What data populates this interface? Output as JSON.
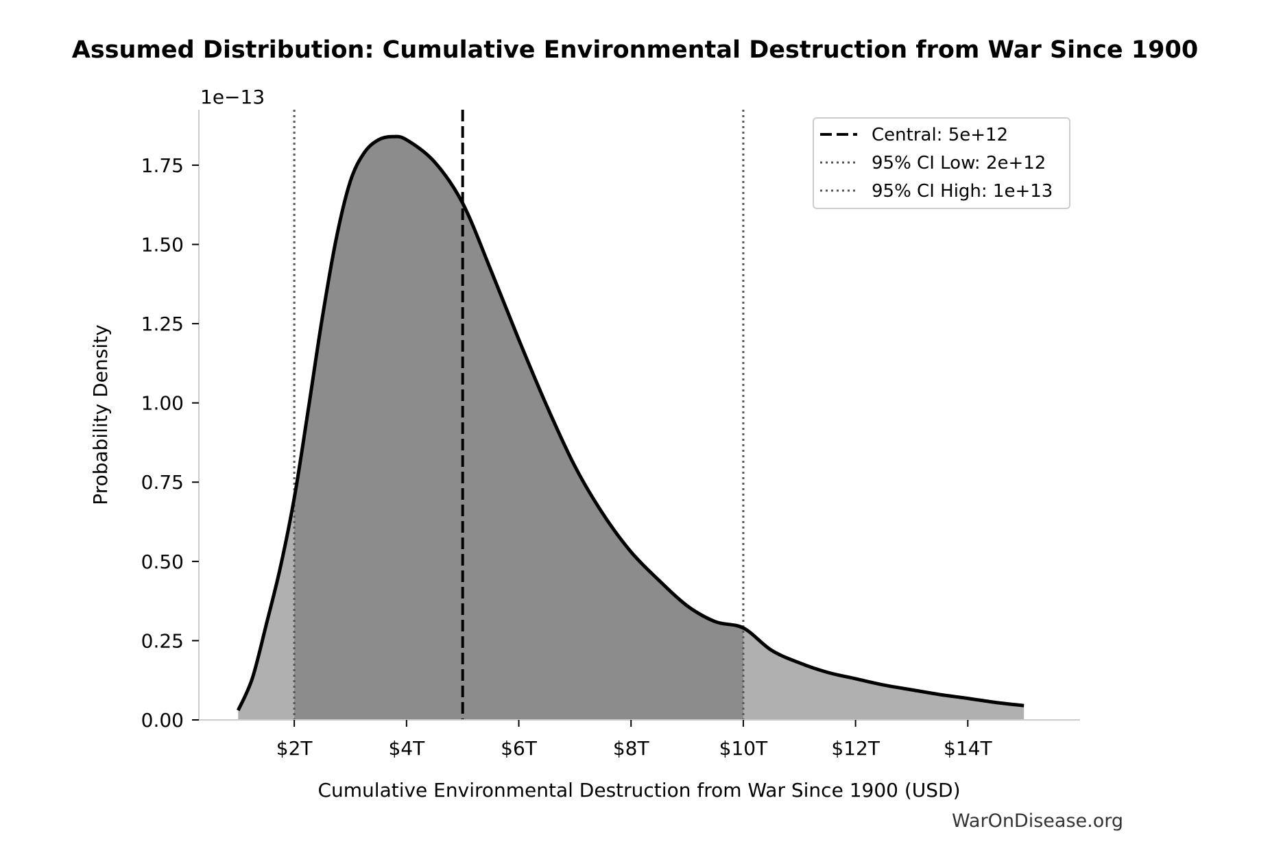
{
  "chart_data": {
    "type": "area",
    "title": "Assumed Distribution: Cumulative Environmental Destruction from War Since 1900",
    "xlabel": "Cumulative Environmental Destruction from War Since 1900 (USD)",
    "ylabel": "Probability Density",
    "y_offset_label": "1e−13",
    "xlim": [
      0.3,
      16.0
    ],
    "ylim": [
      0.0,
      1.925
    ],
    "x_unit": "trillion USD",
    "y_unit": "1e-13",
    "x_ticks": [
      {
        "value": 2,
        "label": "$2T"
      },
      {
        "value": 4,
        "label": "$4T"
      },
      {
        "value": 6,
        "label": "$6T"
      },
      {
        "value": 8,
        "label": "$8T"
      },
      {
        "value": 10,
        "label": "$10T"
      },
      {
        "value": 12,
        "label": "$12T"
      },
      {
        "value": 14,
        "label": "$14T"
      }
    ],
    "y_ticks": [
      {
        "value": 0.0,
        "label": "0.00"
      },
      {
        "value": 0.25,
        "label": "0.25"
      },
      {
        "value": 0.5,
        "label": "0.50"
      },
      {
        "value": 0.75,
        "label": "0.75"
      },
      {
        "value": 1.0,
        "label": "1.00"
      },
      {
        "value": 1.25,
        "label": "1.25"
      },
      {
        "value": 1.5,
        "label": "1.50"
      },
      {
        "value": 1.75,
        "label": "1.75"
      }
    ],
    "series": [
      {
        "x": [
          1.0,
          1.25,
          1.5,
          1.75,
          2.0,
          2.25,
          2.5,
          2.75,
          3.0,
          3.25,
          3.5,
          3.75,
          4.0,
          4.5,
          5.0,
          5.5,
          6.0,
          6.5,
          7.0,
          7.5,
          8.0,
          8.5,
          9.0,
          9.5,
          10.0,
          10.5,
          11.0,
          11.5,
          12.0,
          12.5,
          13.0,
          13.5,
          14.0,
          14.5,
          15.0
        ],
        "y": [
          0.03,
          0.13,
          0.3,
          0.48,
          0.7,
          0.98,
          1.27,
          1.52,
          1.7,
          1.79,
          1.83,
          1.84,
          1.83,
          1.76,
          1.63,
          1.42,
          1.2,
          0.99,
          0.8,
          0.65,
          0.53,
          0.44,
          0.36,
          0.31,
          0.29,
          0.22,
          0.18,
          0.15,
          0.13,
          0.11,
          0.095,
          0.08,
          0.068,
          0.055,
          0.045
        ]
      }
    ],
    "ci_shaded_range": [
      2,
      10
    ],
    "colors": {
      "curve": "#000000",
      "fill_tail": "#b0b0b0",
      "fill_ci": "#8c8c8c",
      "axis": "#cccccc",
      "ref_lines": "#555555"
    },
    "reference_lines": [
      {
        "x": 5,
        "style": "dashed",
        "label": "Central: 5e+12"
      },
      {
        "x": 2,
        "style": "dotted",
        "label": "95% CI Low: 2e+12"
      },
      {
        "x": 10,
        "style": "dotted",
        "label": "95% CI High: 1e+13"
      }
    ],
    "legend_position": "top-right",
    "grid": false,
    "watermark": "WarOnDisease.org"
  }
}
